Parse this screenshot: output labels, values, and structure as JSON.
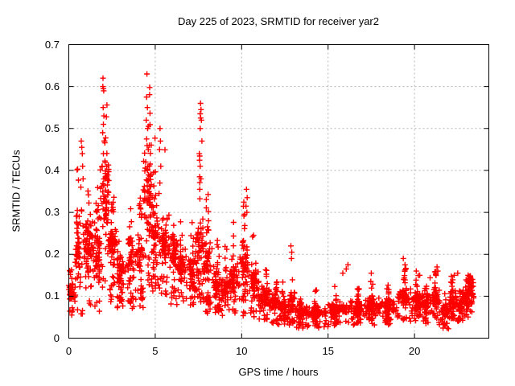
{
  "chart_data": {
    "type": "scatter",
    "title": "Day 225 of 2023, SRMTID for receiver yar2",
    "xlabel": "GPS time / hours",
    "ylabel": "SRMTID / TECUs",
    "xlim": [
      0,
      24.3
    ],
    "ylim": [
      0,
      0.7
    ],
    "xticks": [
      0,
      5,
      10,
      15,
      20
    ],
    "yticks": [
      0,
      0.1,
      0.2,
      0.3,
      0.4,
      0.5,
      0.6,
      0.7
    ],
    "grid": {
      "style": "dotted",
      "color": "#b4b4b4"
    },
    "marker": {
      "shape": "plus",
      "color": "#ff0000",
      "size": 7
    },
    "border_color": "#000000",
    "legend": "none",
    "seed": 225,
    "outlier_points": [
      [
        0.72,
        0.47
      ],
      [
        0.75,
        0.455
      ],
      [
        0.78,
        0.44
      ],
      [
        0.8,
        0.41
      ],
      [
        0.83,
        0.38
      ],
      [
        0.7,
        0.36
      ],
      [
        1.93,
        0.41
      ],
      [
        1.96,
        0.49
      ],
      [
        1.97,
        0.6
      ],
      [
        1.98,
        0.62
      ],
      [
        2.0,
        0.595
      ],
      [
        2.02,
        0.59
      ],
      [
        1.99,
        0.55
      ],
      [
        2.03,
        0.53
      ],
      [
        2.0,
        0.51
      ],
      [
        2.05,
        0.47
      ],
      [
        2.0,
        0.44
      ],
      [
        4.52,
        0.63
      ],
      [
        4.5,
        0.575
      ],
      [
        4.55,
        0.55
      ],
      [
        4.48,
        0.52
      ],
      [
        4.56,
        0.5
      ],
      [
        4.5,
        0.475
      ],
      [
        4.6,
        0.45
      ],
      [
        4.45,
        0.42
      ],
      [
        4.55,
        0.4
      ],
      [
        4.62,
        0.375
      ],
      [
        4.4,
        0.35
      ],
      [
        5.28,
        0.5
      ],
      [
        5.3,
        0.47
      ],
      [
        5.25,
        0.45
      ],
      [
        5.32,
        0.41
      ],
      [
        5.27,
        0.37
      ],
      [
        5.22,
        0.345
      ],
      [
        7.62,
        0.56
      ],
      [
        7.65,
        0.545
      ],
      [
        7.6,
        0.535
      ],
      [
        7.63,
        0.525
      ],
      [
        7.67,
        0.52
      ],
      [
        7.6,
        0.5
      ],
      [
        7.7,
        0.47
      ],
      [
        7.55,
        0.44
      ],
      [
        7.6,
        0.41
      ],
      [
        7.65,
        0.38
      ],
      [
        7.58,
        0.355
      ],
      [
        10.28,
        0.355
      ],
      [
        10.32,
        0.335
      ],
      [
        10.25,
        0.315
      ],
      [
        10.3,
        0.3
      ],
      [
        12.85,
        0.22
      ],
      [
        12.9,
        0.205
      ],
      [
        12.88,
        0.19
      ],
      [
        15.85,
        0.155
      ],
      [
        16.05,
        0.165
      ],
      [
        16.15,
        0.175
      ],
      [
        17.5,
        0.155
      ],
      [
        19.35,
        0.19
      ],
      [
        19.45,
        0.175
      ],
      [
        19.5,
        0.165
      ],
      [
        20.1,
        0.16
      ],
      [
        20.3,
        0.15
      ],
      [
        20.9,
        0.144
      ],
      [
        21.3,
        0.17
      ],
      [
        21.35,
        0.16
      ],
      [
        22.3,
        0.15
      ],
      [
        22.5,
        0.155
      ],
      [
        23.1,
        0.15
      ],
      [
        23.25,
        0.145
      ],
      [
        23.35,
        0.14
      ]
    ],
    "density_bands": [
      {
        "h0": 0.0,
        "h1": 0.4,
        "ymin": 0.05,
        "ymax": 0.17,
        "lo": 0.08,
        "hi": 0.14,
        "n": 50
      },
      {
        "h0": 0.4,
        "h1": 0.8,
        "ymin": 0.05,
        "ymax": 0.44,
        "lo": 0.1,
        "hi": 0.33,
        "n": 60
      },
      {
        "h0": 0.8,
        "h1": 1.3,
        "ymin": 0.06,
        "ymax": 0.42,
        "lo": 0.15,
        "hi": 0.3,
        "n": 70
      },
      {
        "h0": 1.3,
        "h1": 1.8,
        "ymin": 0.055,
        "ymax": 0.38,
        "lo": 0.12,
        "hi": 0.3,
        "n": 70
      },
      {
        "h0": 1.8,
        "h1": 2.3,
        "ymin": 0.08,
        "ymax": 0.58,
        "lo": 0.25,
        "hi": 0.44,
        "n": 80
      },
      {
        "h0": 2.3,
        "h1": 2.8,
        "ymin": 0.08,
        "ymax": 0.4,
        "lo": 0.15,
        "hi": 0.3,
        "n": 70
      },
      {
        "h0": 2.8,
        "h1": 3.3,
        "ymin": 0.07,
        "ymax": 0.3,
        "lo": 0.1,
        "hi": 0.22,
        "n": 60
      },
      {
        "h0": 3.3,
        "h1": 3.8,
        "ymin": 0.07,
        "ymax": 0.32,
        "lo": 0.1,
        "hi": 0.25,
        "n": 60
      },
      {
        "h0": 3.8,
        "h1": 4.3,
        "ymin": 0.07,
        "ymax": 0.35,
        "lo": 0.12,
        "hi": 0.28,
        "n": 60
      },
      {
        "h0": 4.3,
        "h1": 4.8,
        "ymin": 0.1,
        "ymax": 0.6,
        "lo": 0.2,
        "hi": 0.48,
        "n": 80
      },
      {
        "h0": 4.8,
        "h1": 5.3,
        "ymin": 0.1,
        "ymax": 0.48,
        "lo": 0.15,
        "hi": 0.35,
        "n": 70
      },
      {
        "h0": 5.3,
        "h1": 5.8,
        "ymin": 0.1,
        "ymax": 0.46,
        "lo": 0.15,
        "hi": 0.3,
        "n": 60
      },
      {
        "h0": 5.8,
        "h1": 6.3,
        "ymin": 0.08,
        "ymax": 0.3,
        "lo": 0.12,
        "hi": 0.25,
        "n": 60
      },
      {
        "h0": 6.3,
        "h1": 6.8,
        "ymin": 0.08,
        "ymax": 0.28,
        "lo": 0.12,
        "hi": 0.22,
        "n": 60
      },
      {
        "h0": 6.8,
        "h1": 7.3,
        "ymin": 0.07,
        "ymax": 0.3,
        "lo": 0.1,
        "hi": 0.2,
        "n": 60
      },
      {
        "h0": 7.3,
        "h1": 7.8,
        "ymin": 0.08,
        "ymax": 0.5,
        "lo": 0.12,
        "hi": 0.3,
        "n": 70
      },
      {
        "h0": 7.8,
        "h1": 8.3,
        "ymin": 0.06,
        "ymax": 0.35,
        "lo": 0.1,
        "hi": 0.25,
        "n": 70
      },
      {
        "h0": 8.3,
        "h1": 8.8,
        "ymin": 0.05,
        "ymax": 0.25,
        "lo": 0.08,
        "hi": 0.18,
        "n": 60
      },
      {
        "h0": 8.8,
        "h1": 9.3,
        "ymin": 0.05,
        "ymax": 0.22,
        "lo": 0.08,
        "hi": 0.16,
        "n": 55
      },
      {
        "h0": 9.3,
        "h1": 9.8,
        "ymin": 0.05,
        "ymax": 0.28,
        "lo": 0.08,
        "hi": 0.2,
        "n": 60
      },
      {
        "h0": 9.8,
        "h1": 10.4,
        "ymin": 0.05,
        "ymax": 0.33,
        "lo": 0.1,
        "hi": 0.25,
        "n": 70
      },
      {
        "h0": 10.4,
        "h1": 11.0,
        "ymin": 0.05,
        "ymax": 0.28,
        "lo": 0.08,
        "hi": 0.18,
        "n": 65
      },
      {
        "h0": 11.0,
        "h1": 11.6,
        "ymin": 0.04,
        "ymax": 0.17,
        "lo": 0.07,
        "hi": 0.13,
        "n": 65
      },
      {
        "h0": 11.6,
        "h1": 12.2,
        "ymin": 0.03,
        "ymax": 0.14,
        "lo": 0.06,
        "hi": 0.11,
        "n": 65
      },
      {
        "h0": 12.2,
        "h1": 12.8,
        "ymin": 0.03,
        "ymax": 0.15,
        "lo": 0.05,
        "hi": 0.1,
        "n": 65
      },
      {
        "h0": 12.8,
        "h1": 13.1,
        "ymin": 0.03,
        "ymax": 0.17,
        "lo": 0.05,
        "hi": 0.12,
        "n": 40
      },
      {
        "h0": 13.1,
        "h1": 14.0,
        "ymin": 0.02,
        "ymax": 0.1,
        "lo": 0.04,
        "hi": 0.08,
        "n": 90
      },
      {
        "h0": 14.0,
        "h1": 15.0,
        "ymin": 0.02,
        "ymax": 0.12,
        "lo": 0.04,
        "hi": 0.08,
        "n": 100
      },
      {
        "h0": 15.0,
        "h1": 16.0,
        "ymin": 0.03,
        "ymax": 0.13,
        "lo": 0.04,
        "hi": 0.09,
        "n": 100
      },
      {
        "h0": 16.0,
        "h1": 17.0,
        "ymin": 0.03,
        "ymax": 0.13,
        "lo": 0.05,
        "hi": 0.09,
        "n": 100
      },
      {
        "h0": 17.0,
        "h1": 18.0,
        "ymin": 0.03,
        "ymax": 0.15,
        "lo": 0.05,
        "hi": 0.1,
        "n": 100
      },
      {
        "h0": 18.0,
        "h1": 19.0,
        "ymin": 0.03,
        "ymax": 0.14,
        "lo": 0.05,
        "hi": 0.1,
        "n": 100
      },
      {
        "h0": 19.0,
        "h1": 19.7,
        "ymin": 0.04,
        "ymax": 0.17,
        "lo": 0.06,
        "hi": 0.13,
        "n": 75
      },
      {
        "h0": 19.7,
        "h1": 20.5,
        "ymin": 0.04,
        "ymax": 0.15,
        "lo": 0.06,
        "hi": 0.12,
        "n": 80
      },
      {
        "h0": 20.5,
        "h1": 21.0,
        "ymin": 0.03,
        "ymax": 0.14,
        "lo": 0.05,
        "hi": 0.11,
        "n": 55
      },
      {
        "h0": 21.0,
        "h1": 21.6,
        "ymin": 0.03,
        "ymax": 0.16,
        "lo": 0.06,
        "hi": 0.12,
        "n": 60
      },
      {
        "h0": 21.6,
        "h1": 22.0,
        "ymin": 0.02,
        "ymax": 0.12,
        "lo": 0.04,
        "hi": 0.09,
        "n": 55
      },
      {
        "h0": 22.0,
        "h1": 22.45,
        "ymin": 0.04,
        "ymax": 0.15,
        "lo": 0.06,
        "hi": 0.12,
        "n": 60
      },
      {
        "h0": 22.45,
        "h1": 22.75,
        "ymin": 0.04,
        "ymax": 0.12,
        "lo": 0.05,
        "hi": 0.1,
        "n": 45
      },
      {
        "h0": 22.75,
        "h1": 23.1,
        "ymin": 0.05,
        "ymax": 0.14,
        "lo": 0.07,
        "hi": 0.12,
        "n": 55
      },
      {
        "h0": 23.1,
        "h1": 23.4,
        "ymin": 0.06,
        "ymax": 0.15,
        "lo": 0.09,
        "hi": 0.14,
        "n": 55
      }
    ]
  }
}
